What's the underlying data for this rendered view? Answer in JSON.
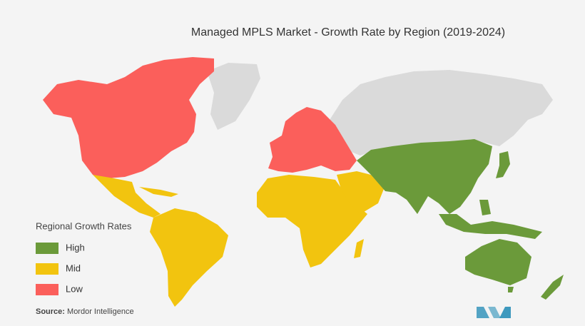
{
  "title": "Managed MPLS Market  - Growth Rate by Region (2019-2024)",
  "legend": {
    "title": "Regional Growth Rates",
    "items": [
      {
        "label": "High",
        "color": "#6b9a3a"
      },
      {
        "label": "Mid",
        "color": "#f2c40f"
      },
      {
        "label": "Low",
        "color": "#fb5f5b"
      }
    ]
  },
  "source": {
    "label": "Source:",
    "text": "Mordor Intelligence"
  }
}
